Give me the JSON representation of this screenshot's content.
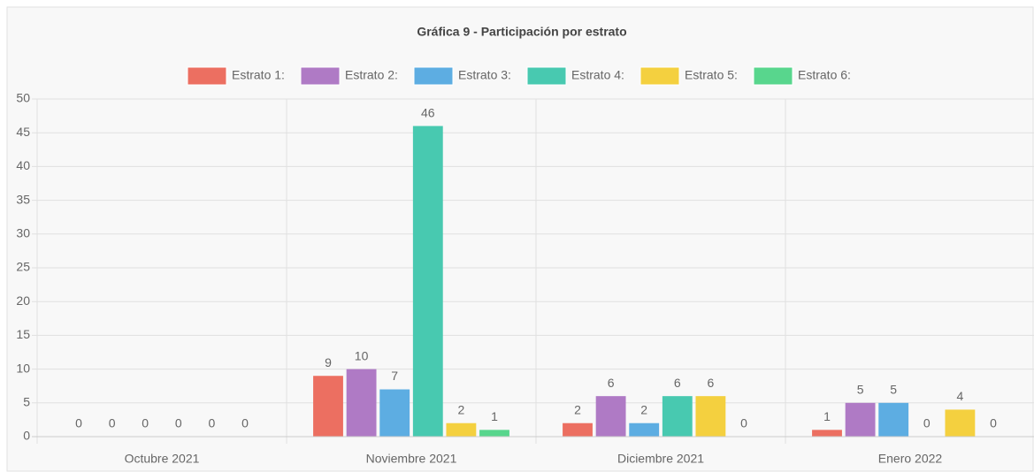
{
  "chart_data": {
    "type": "bar",
    "title": "Gráfica 9 - Participación por estrato",
    "categories": [
      "Octubre 2021",
      "Noviembre 2021",
      "Diciembre 2021",
      "Enero 2022"
    ],
    "series": [
      {
        "name": "Estrato 1:",
        "color": "#ec6f61",
        "values": [
          0,
          9,
          2,
          1
        ]
      },
      {
        "name": "Estrato 2:",
        "color": "#af7ac5",
        "values": [
          0,
          10,
          6,
          5
        ]
      },
      {
        "name": "Estrato 3:",
        "color": "#5dade2",
        "values": [
          0,
          7,
          2,
          5
        ]
      },
      {
        "name": "Estrato 4:",
        "color": "#48c9b0",
        "values": [
          0,
          46,
          6,
          0
        ]
      },
      {
        "name": "Estrato 5:",
        "color": "#f4d03f",
        "values": [
          0,
          2,
          6,
          4
        ]
      },
      {
        "name": "Estrato 6:",
        "color": "#58d68d",
        "values": [
          0,
          1,
          0,
          0
        ]
      }
    ],
    "ylim": [
      0,
      50
    ],
    "yticks": [
      0,
      5,
      10,
      15,
      20,
      25,
      30,
      35,
      40,
      45,
      50
    ],
    "grid": true,
    "legend": "top"
  }
}
